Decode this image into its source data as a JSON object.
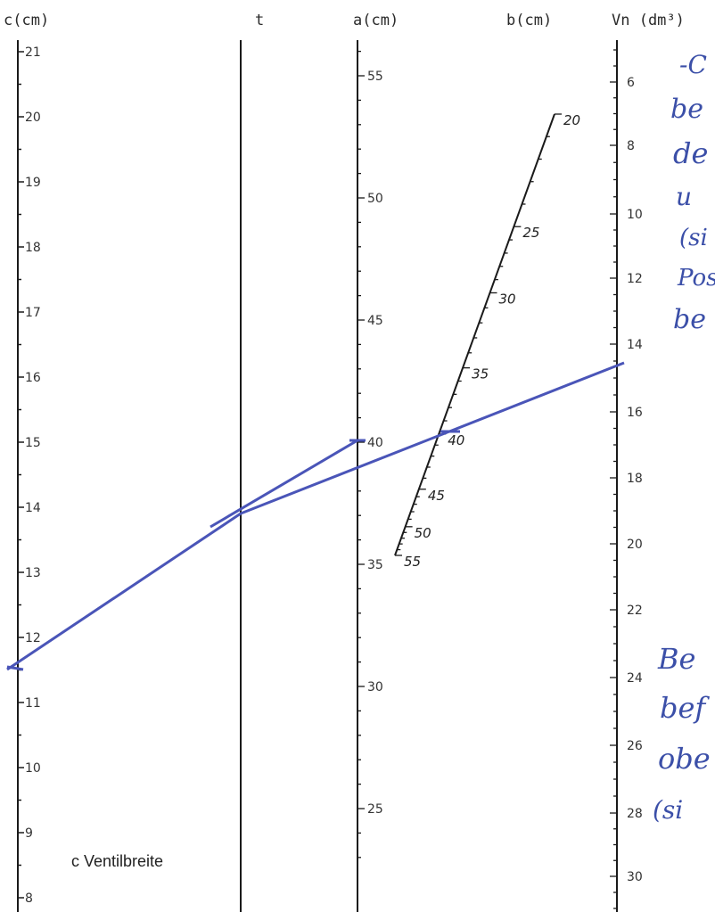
{
  "axes": {
    "c": {
      "title": "c(cm)",
      "min": 8,
      "max": 21,
      "labels": [
        8,
        9,
        10,
        11,
        12,
        13,
        14,
        15,
        16,
        17,
        18,
        19,
        20,
        21
      ]
    },
    "t": {
      "title": "t"
    },
    "a": {
      "title": "a(cm)",
      "labels": [
        25,
        30,
        35,
        40,
        45,
        50,
        55
      ]
    },
    "b": {
      "title": "b(cm)",
      "labels": [
        20,
        25,
        30,
        35,
        40,
        45,
        50,
        55
      ]
    },
    "vn": {
      "title": "Vn (dm³)",
      "labels": [
        6,
        8,
        10,
        12,
        14,
        16,
        18,
        20,
        22,
        24,
        26,
        28,
        30
      ]
    }
  },
  "caption": "c Ventilbreite",
  "handwritten_notes": {
    "top": [
      "-C",
      "be",
      "de",
      "u",
      "(si",
      "Pos",
      "be"
    ],
    "bottom": [
      "Be",
      "bef",
      "obe",
      "(si"
    ]
  },
  "reading": {
    "a": 40,
    "b": 40,
    "vn": 14.7,
    "c": 11.5
  },
  "colors": {
    "axis": "#1a1a1a",
    "construction": "#4a55b8",
    "ink": "#3b4fa8"
  }
}
